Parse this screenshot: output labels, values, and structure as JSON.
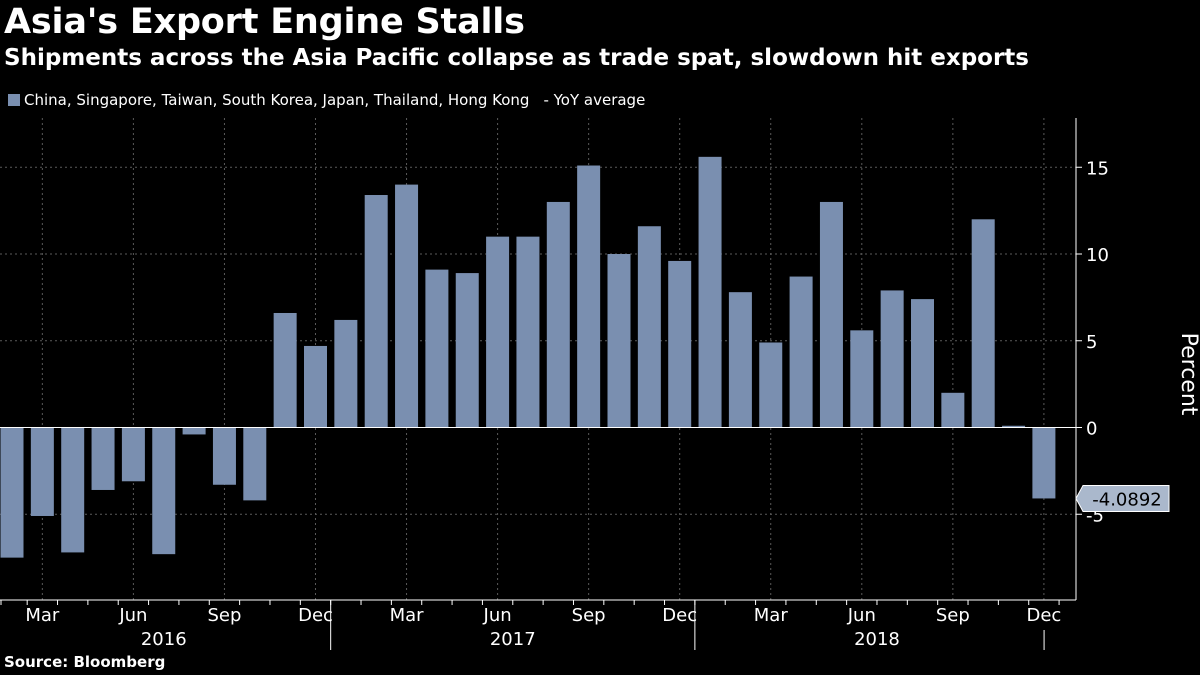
{
  "header": {
    "title": "Asia's Export Engine Stalls",
    "subtitle": "Shipments across the Asia Pacific collapse as trade spat, slowdown hit exports"
  },
  "legend": {
    "series_label": "China, Singapore, Taiwan, South Korea, Japan, Thailand, Hong Kong",
    "suffix": "- YoY average",
    "color": "#7a8fb0"
  },
  "source": "Source: Bloomberg",
  "chart_data": {
    "type": "bar",
    "title": "Asia's Export Engine Stalls",
    "ylabel": "Percent",
    "xlabel": "",
    "ylim": [
      -10,
      17.5
    ],
    "yticks": [
      -5,
      0,
      5,
      10,
      15
    ],
    "ytick_labels": [
      "-5",
      "0",
      "5",
      "10",
      "15"
    ],
    "grid": true,
    "series": [
      {
        "name": "China, Singapore, Taiwan, South Korea, Japan, Thailand, Hong Kong - YoY average",
        "color": "#7a8fb0",
        "categories": [
          "2016-02",
          "2016-03",
          "2016-04",
          "2016-05",
          "2016-06",
          "2016-07",
          "2016-08",
          "2016-09",
          "2016-10",
          "2016-11",
          "2016-12",
          "2017-01",
          "2017-02",
          "2017-03",
          "2017-04",
          "2017-05",
          "2017-06",
          "2017-07",
          "2017-08",
          "2017-09",
          "2017-10",
          "2017-11",
          "2017-12",
          "2018-01",
          "2018-02",
          "2018-03",
          "2018-04",
          "2018-05",
          "2018-06",
          "2018-07",
          "2018-08",
          "2018-09",
          "2018-10",
          "2018-11",
          "2018-12"
        ],
        "values": [
          -7.5,
          -5.1,
          -7.2,
          -3.6,
          -3.1,
          -7.3,
          -0.4,
          -3.3,
          -4.2,
          6.6,
          4.7,
          6.2,
          13.4,
          14.0,
          9.1,
          8.9,
          11.0,
          11.0,
          13.0,
          15.1,
          10.0,
          11.6,
          9.6,
          15.6,
          7.8,
          4.9,
          8.7,
          13.0,
          5.6,
          7.9,
          7.4,
          2.0,
          12.0,
          0.1,
          -4.0892
        ]
      }
    ],
    "x_month_labels": [
      {
        "index": 1,
        "label": "Mar"
      },
      {
        "index": 4,
        "label": "Jun"
      },
      {
        "index": 7,
        "label": "Sep"
      },
      {
        "index": 10,
        "label": "Dec"
      },
      {
        "index": 13,
        "label": "Mar"
      },
      {
        "index": 16,
        "label": "Jun"
      },
      {
        "index": 19,
        "label": "Sep"
      },
      {
        "index": 22,
        "label": "Dec"
      },
      {
        "index": 25,
        "label": "Mar"
      },
      {
        "index": 28,
        "label": "Jun"
      },
      {
        "index": 31,
        "label": "Sep"
      },
      {
        "index": 34,
        "label": "Dec"
      }
    ],
    "x_year_labels": [
      {
        "first_index": 0,
        "last_index": 10,
        "label": "2016"
      },
      {
        "first_index": 11,
        "last_index": 22,
        "label": "2017"
      },
      {
        "first_index": 23,
        "last_index": 34,
        "label": "2018"
      }
    ],
    "year_separator_indices": [
      11,
      23
    ],
    "last_value_label": "-4.0892"
  }
}
